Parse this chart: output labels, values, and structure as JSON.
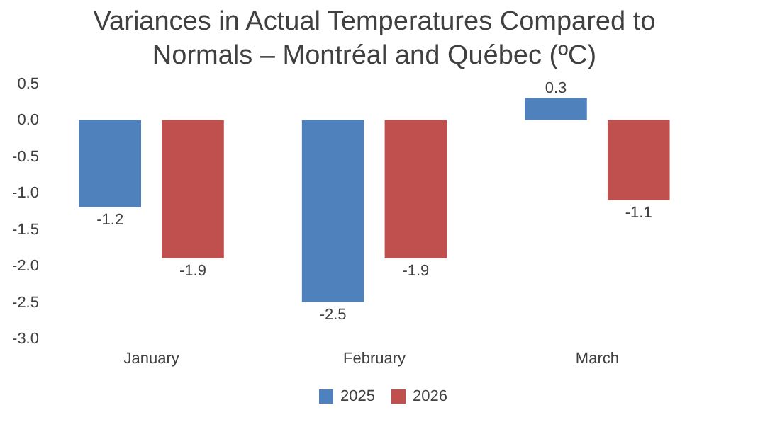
{
  "chart_data": {
    "type": "bar",
    "title": "Variances in Actual Temperatures Compared to Normals – Montréal and Québec (ºC)",
    "categories": [
      "January",
      "February",
      "March"
    ],
    "series": [
      {
        "name": "2025",
        "color": "#4f81bd",
        "values": [
          -1.2,
          -2.5,
          0.3
        ]
      },
      {
        "name": "2026",
        "color": "#c0504d",
        "values": [
          -1.9,
          -1.9,
          -1.1
        ]
      }
    ],
    "ylim": [
      -3.0,
      0.5
    ],
    "yticks": [
      {
        "value": -3.0,
        "label": "-3.0"
      },
      {
        "value": -2.5,
        "label": "-2.5"
      },
      {
        "value": -2.0,
        "label": "-2.0"
      },
      {
        "value": -1.5,
        "label": "-1.5"
      },
      {
        "value": -1.0,
        "label": "-1.0"
      },
      {
        "value": -0.5,
        "label": "-0.5"
      },
      {
        "value": 0.0,
        "label": "0.0"
      },
      {
        "value": 0.5,
        "label": "0.5"
      }
    ],
    "data_labels": true,
    "grid": false,
    "legend": "bottom"
  }
}
